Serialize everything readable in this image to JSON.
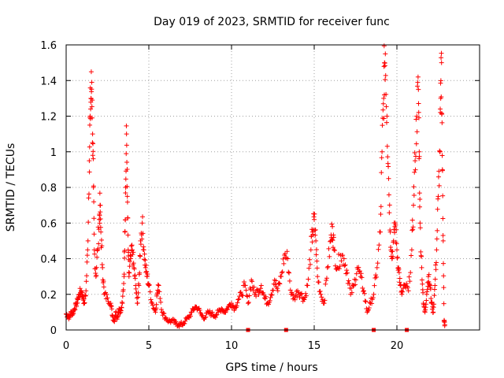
{
  "chart_data": {
    "type": "scatter",
    "title": "Day 019 of 2023, SRMTID for receiver func",
    "xlabel": "GPS time / hours",
    "ylabel": "SRMTID / TECUs",
    "xlim": [
      0,
      25
    ],
    "ylim": [
      0,
      1.6
    ],
    "xticks": [
      0,
      5,
      10,
      15,
      20
    ],
    "xtick_labels": [
      "0",
      "5",
      "10",
      "15",
      "20"
    ],
    "yticks": [
      0,
      0.2,
      0.4,
      0.6,
      0.8,
      1.0,
      1.2,
      1.4,
      1.6
    ],
    "ytick_labels": [
      "0",
      "0.2",
      "0.4",
      "0.6",
      "0.8",
      "1",
      "1.2",
      "1.4",
      "1.6"
    ],
    "grid": true,
    "marker": "+",
    "color": "#ff0000",
    "series": [
      {
        "name": "SRMTID",
        "points": [
          [
            0.0,
            0.09
          ],
          [
            0.1,
            0.08
          ],
          [
            0.2,
            0.07
          ],
          [
            0.3,
            0.1
          ],
          [
            0.4,
            0.09
          ],
          [
            0.5,
            0.12
          ],
          [
            0.6,
            0.14
          ],
          [
            0.7,
            0.17
          ],
          [
            0.8,
            0.2
          ],
          [
            0.9,
            0.22
          ],
          [
            1.0,
            0.19
          ],
          [
            1.1,
            0.15
          ],
          [
            1.2,
            0.22
          ],
          [
            1.3,
            0.45
          ],
          [
            1.4,
            0.95
          ],
          [
            1.45,
            1.2
          ],
          [
            1.5,
            1.3
          ],
          [
            1.55,
            1.39
          ],
          [
            1.6,
            1.1
          ],
          [
            1.65,
            0.8
          ],
          [
            1.7,
            0.45
          ],
          [
            1.8,
            0.3
          ],
          [
            1.9,
            0.45
          ],
          [
            2.0,
            0.62
          ],
          [
            2.05,
            0.7
          ],
          [
            2.1,
            0.55
          ],
          [
            2.2,
            0.35
          ],
          [
            2.3,
            0.2
          ],
          [
            2.5,
            0.18
          ],
          [
            2.7,
            0.15
          ],
          [
            2.8,
            0.08
          ],
          [
            2.9,
            0.05
          ],
          [
            3.0,
            0.1
          ],
          [
            3.1,
            0.07
          ],
          [
            3.2,
            0.12
          ],
          [
            3.3,
            0.1
          ],
          [
            3.4,
            0.15
          ],
          [
            3.5,
            0.3
          ],
          [
            3.55,
            0.55
          ],
          [
            3.6,
            0.8
          ],
          [
            3.65,
            1.1
          ],
          [
            3.7,
            0.75
          ],
          [
            3.75,
            0.45
          ],
          [
            3.8,
            0.3
          ],
          [
            3.9,
            0.4
          ],
          [
            4.0,
            0.45
          ],
          [
            4.1,
            0.35
          ],
          [
            4.2,
            0.25
          ],
          [
            4.3,
            0.15
          ],
          [
            4.4,
            0.25
          ],
          [
            4.5,
            0.5
          ],
          [
            4.6,
            0.6
          ],
          [
            4.7,
            0.45
          ],
          [
            4.8,
            0.35
          ],
          [
            4.9,
            0.3
          ],
          [
            5.0,
            0.25
          ],
          [
            5.2,
            0.15
          ],
          [
            5.4,
            0.1
          ],
          [
            5.5,
            0.2
          ],
          [
            5.6,
            0.25
          ],
          [
            5.8,
            0.1
          ],
          [
            6.0,
            0.07
          ],
          [
            6.2,
            0.05
          ],
          [
            6.4,
            0.05
          ],
          [
            6.6,
            0.04
          ],
          [
            6.8,
            0.03
          ],
          [
            7.0,
            0.03
          ],
          [
            7.2,
            0.05
          ],
          [
            7.4,
            0.07
          ],
          [
            7.6,
            0.1
          ],
          [
            7.8,
            0.13
          ],
          [
            8.0,
            0.12
          ],
          [
            8.2,
            0.08
          ],
          [
            8.4,
            0.07
          ],
          [
            8.6,
            0.1
          ],
          [
            8.8,
            0.09
          ],
          [
            9.0,
            0.08
          ],
          [
            9.2,
            0.1
          ],
          [
            9.4,
            0.12
          ],
          [
            9.6,
            0.1
          ],
          [
            9.8,
            0.13
          ],
          [
            10.0,
            0.15
          ],
          [
            10.2,
            0.12
          ],
          [
            10.4,
            0.17
          ],
          [
            10.6,
            0.2
          ],
          [
            10.8,
            0.25
          ],
          [
            11.0,
            0.15
          ],
          [
            11.2,
            0.28
          ],
          [
            11.4,
            0.2
          ],
          [
            11.6,
            0.22
          ],
          [
            11.8,
            0.25
          ],
          [
            12.0,
            0.18
          ],
          [
            12.2,
            0.15
          ],
          [
            12.4,
            0.2
          ],
          [
            12.6,
            0.28
          ],
          [
            12.8,
            0.22
          ],
          [
            13.0,
            0.3
          ],
          [
            13.2,
            0.42
          ],
          [
            13.4,
            0.4
          ],
          [
            13.6,
            0.2
          ],
          [
            13.8,
            0.18
          ],
          [
            14.0,
            0.22
          ],
          [
            14.2,
            0.2
          ],
          [
            14.4,
            0.17
          ],
          [
            14.6,
            0.25
          ],
          [
            14.8,
            0.45
          ],
          [
            14.9,
            0.55
          ],
          [
            15.0,
            0.62
          ],
          [
            15.1,
            0.5
          ],
          [
            15.2,
            0.3
          ],
          [
            15.4,
            0.2
          ],
          [
            15.6,
            0.15
          ],
          [
            15.8,
            0.35
          ],
          [
            16.0,
            0.5
          ],
          [
            16.1,
            0.58
          ],
          [
            16.2,
            0.45
          ],
          [
            16.4,
            0.35
          ],
          [
            16.6,
            0.42
          ],
          [
            16.8,
            0.4
          ],
          [
            17.0,
            0.32
          ],
          [
            17.2,
            0.2
          ],
          [
            17.4,
            0.25
          ],
          [
            17.6,
            0.35
          ],
          [
            17.8,
            0.3
          ],
          [
            18.0,
            0.22
          ],
          [
            18.2,
            0.1
          ],
          [
            18.4,
            0.15
          ],
          [
            18.6,
            0.2
          ],
          [
            18.8,
            0.35
          ],
          [
            19.0,
            0.55
          ],
          [
            19.1,
            1.0
          ],
          [
            19.2,
            1.3
          ],
          [
            19.25,
            1.5
          ],
          [
            19.3,
            1.55
          ],
          [
            19.4,
            1.2
          ],
          [
            19.5,
            0.85
          ],
          [
            19.6,
            0.55
          ],
          [
            19.7,
            0.4
          ],
          [
            19.8,
            0.5
          ],
          [
            19.9,
            0.6
          ],
          [
            20.0,
            0.45
          ],
          [
            20.1,
            0.35
          ],
          [
            20.2,
            0.25
          ],
          [
            20.3,
            0.2
          ],
          [
            20.5,
            0.25
          ],
          [
            20.7,
            0.22
          ],
          [
            20.9,
            0.45
          ],
          [
            21.0,
            0.7
          ],
          [
            21.1,
            0.95
          ],
          [
            21.2,
            1.2
          ],
          [
            21.3,
            1.35
          ],
          [
            21.35,
            1.0
          ],
          [
            21.4,
            0.6
          ],
          [
            21.5,
            0.35
          ],
          [
            21.6,
            0.15
          ],
          [
            21.7,
            0.1
          ],
          [
            21.8,
            0.2
          ],
          [
            21.9,
            0.3
          ],
          [
            22.0,
            0.25
          ],
          [
            22.1,
            0.15
          ],
          [
            22.2,
            0.1
          ],
          [
            22.3,
            0.25
          ],
          [
            22.4,
            0.45
          ],
          [
            22.5,
            0.75
          ],
          [
            22.6,
            1.0
          ],
          [
            22.65,
            1.3
          ],
          [
            22.7,
            1.5
          ],
          [
            22.75,
            0.9
          ],
          [
            22.8,
            0.5
          ],
          [
            22.85,
            0.05
          ],
          [
            22.9,
            0.03
          ]
        ]
      }
    ],
    "data_gaps": [
      11.0,
      13.3,
      18.6,
      20.6
    ]
  }
}
